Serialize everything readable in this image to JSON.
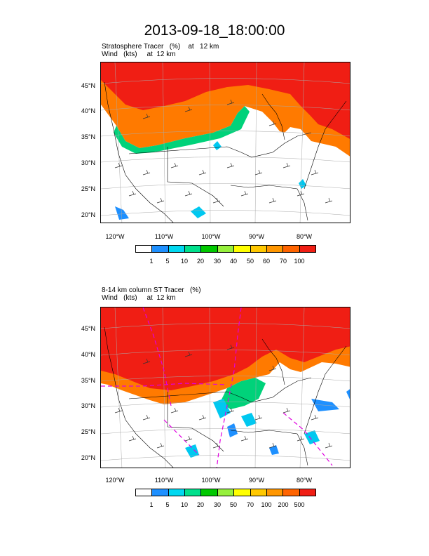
{
  "main_title": "2013-09-18_18:00:00",
  "panels": [
    {
      "title_line1": "Stratosphere Tracer   (%)    at   12 km",
      "title_line2": "Wind   (kts)     at  12 km",
      "colorbar_labels": [
        "1",
        "5",
        "10",
        "20",
        "30",
        "40",
        "50",
        "60",
        "70",
        "100"
      ]
    },
    {
      "title_line1": "8-14 km column ST Tracer   (%)",
      "title_line2": "Wind   (kts)     at  12 km",
      "colorbar_labels": [
        "1",
        "5",
        "10",
        "20",
        "30",
        "50",
        "70",
        "100",
        "200",
        "500"
      ]
    }
  ],
  "lat_labels": [
    "45°N",
    "40°N",
    "35°N",
    "30°N",
    "25°N",
    "20°N"
  ],
  "lon_labels": [
    "120°W",
    "110°W",
    "100°W",
    "90°W",
    "80°W"
  ],
  "colorbar_colors": [
    "#ffffff",
    "#1e90ff",
    "#00d8f0",
    "#00e08c",
    "#00c800",
    "#96f03c",
    "#ffff00",
    "#ffc800",
    "#ff9600",
    "#ff6400",
    "#f01e14"
  ]
}
